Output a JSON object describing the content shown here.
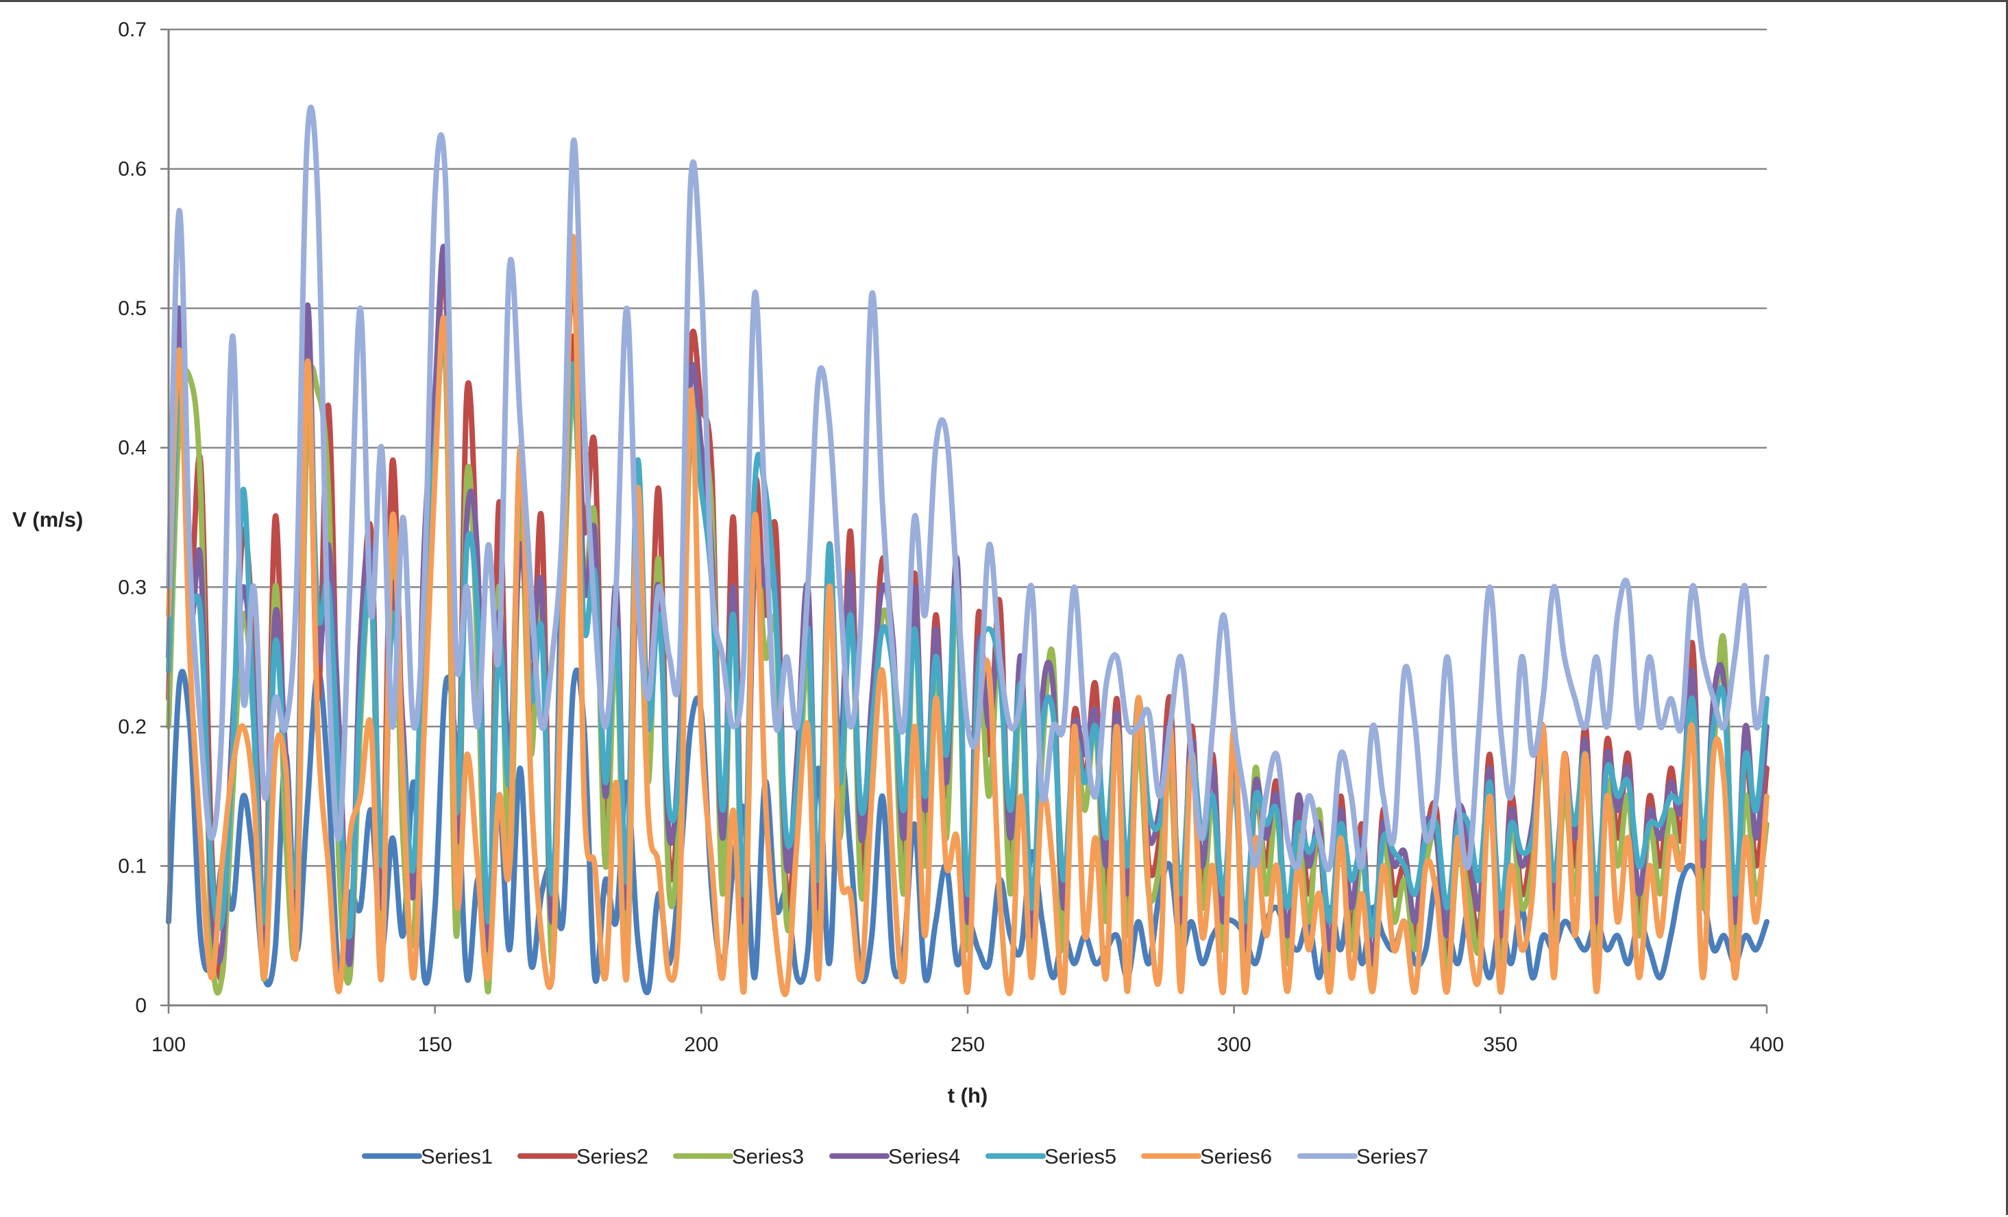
{
  "chart_data": {
    "type": "line",
    "title": "",
    "xlabel": "t (h)",
    "ylabel": "V (m/s)",
    "xlim": [
      100,
      400
    ],
    "ylim": [
      0,
      0.7
    ],
    "x_ticks": [
      100,
      150,
      200,
      250,
      300,
      350,
      400
    ],
    "y_ticks": [
      0,
      0.1,
      0.2,
      0.3,
      0.4,
      0.5,
      0.6,
      0.7
    ],
    "grid": "horizontal major gridlines",
    "legend_position": "bottom",
    "x": [
      100,
      102,
      104,
      106,
      108,
      110,
      112,
      114,
      116,
      118,
      120,
      122,
      124,
      126,
      128,
      130,
      132,
      134,
      136,
      138,
      140,
      142,
      144,
      146,
      148,
      150,
      152,
      154,
      156,
      158,
      160,
      162,
      164,
      166,
      168,
      170,
      172,
      174,
      176,
      178,
      180,
      182,
      184,
      186,
      188,
      190,
      192,
      194,
      196,
      198,
      200,
      202,
      204,
      206,
      208,
      210,
      212,
      214,
      216,
      218,
      220,
      222,
      224,
      226,
      228,
      230,
      232,
      234,
      236,
      238,
      240,
      242,
      244,
      246,
      248,
      250,
      252,
      254,
      256,
      258,
      260,
      262,
      264,
      266,
      268,
      270,
      272,
      274,
      276,
      278,
      280,
      282,
      284,
      286,
      288,
      290,
      292,
      294,
      296,
      298,
      300,
      302,
      304,
      306,
      308,
      310,
      312,
      314,
      316,
      318,
      320,
      322,
      324,
      326,
      328,
      330,
      332,
      334,
      336,
      338,
      340,
      342,
      344,
      346,
      348,
      350,
      352,
      354,
      356,
      358,
      360,
      362,
      364,
      366,
      368,
      370,
      372,
      374,
      376,
      378,
      380,
      382,
      384,
      386,
      388,
      390,
      392,
      394,
      396,
      398,
      400
    ],
    "series": [
      {
        "name": "Series1",
        "color": "#4a7ebb",
        "values": [
          0.06,
          0.23,
          0.2,
          0.05,
          0.03,
          0.1,
          0.07,
          0.15,
          0.1,
          0.02,
          0.04,
          0.18,
          0.04,
          0.14,
          0.24,
          0.16,
          0.02,
          0.08,
          0.07,
          0.14,
          0.04,
          0.12,
          0.05,
          0.16,
          0.02,
          0.07,
          0.23,
          0.18,
          0.02,
          0.09,
          0.07,
          0.15,
          0.04,
          0.17,
          0.03,
          0.08,
          0.1,
          0.06,
          0.23,
          0.2,
          0.02,
          0.09,
          0.06,
          0.16,
          0.05,
          0.01,
          0.08,
          0.03,
          0.1,
          0.2,
          0.21,
          0.08,
          0.03,
          0.1,
          0.14,
          0.02,
          0.16,
          0.07,
          0.08,
          0.02,
          0.04,
          0.17,
          0.03,
          0.18,
          0.11,
          0.02,
          0.05,
          0.15,
          0.03,
          0.04,
          0.13,
          0.02,
          0.06,
          0.1,
          0.03,
          0.06,
          0.04,
          0.03,
          0.09,
          0.05,
          0.04,
          0.11,
          0.06,
          0.02,
          0.05,
          0.03,
          0.05,
          0.03,
          0.04,
          0.05,
          0.02,
          0.06,
          0.03,
          0.08,
          0.1,
          0.04,
          0.06,
          0.03,
          0.05,
          0.06,
          0.06,
          0.05,
          0.03,
          0.06,
          0.07,
          0.05,
          0.04,
          0.06,
          0.02,
          0.07,
          0.04,
          0.08,
          0.03,
          0.07,
          0.05,
          0.04,
          0.06,
          0.03,
          0.04,
          0.09,
          0.06,
          0.03,
          0.07,
          0.05,
          0.02,
          0.06,
          0.03,
          0.07,
          0.02,
          0.05,
          0.04,
          0.06,
          0.05,
          0.04,
          0.06,
          0.04,
          0.05,
          0.03,
          0.06,
          0.04,
          0.02,
          0.05,
          0.09,
          0.1,
          0.08,
          0.04,
          0.05,
          0.03,
          0.05,
          0.04,
          0.06
        ]
      },
      {
        "name": "Series2",
        "color": "#be4b48",
        "values": [
          0.22,
          0.48,
          0.3,
          0.39,
          0.12,
          0.02,
          0.18,
          0.34,
          0.25,
          0.05,
          0.35,
          0.15,
          0.1,
          0.48,
          0.22,
          0.43,
          0.15,
          0.02,
          0.24,
          0.34,
          0.08,
          0.39,
          0.18,
          0.09,
          0.31,
          0.42,
          0.52,
          0.1,
          0.44,
          0.3,
          0.02,
          0.36,
          0.14,
          0.4,
          0.21,
          0.35,
          0.05,
          0.32,
          0.48,
          0.34,
          0.4,
          0.12,
          0.3,
          0.05,
          0.38,
          0.2,
          0.37,
          0.1,
          0.18,
          0.47,
          0.43,
          0.38,
          0.1,
          0.35,
          0.04,
          0.37,
          0.28,
          0.34,
          0.08,
          0.15,
          0.28,
          0.05,
          0.33,
          0.15,
          0.34,
          0.1,
          0.2,
          0.32,
          0.25,
          0.1,
          0.31,
          0.12,
          0.28,
          0.15,
          0.31,
          0.05,
          0.28,
          0.18,
          0.29,
          0.1,
          0.25,
          0.04,
          0.2,
          0.24,
          0.05,
          0.21,
          0.16,
          0.23,
          0.08,
          0.22,
          0.06,
          0.22,
          0.1,
          0.12,
          0.22,
          0.04,
          0.2,
          0.08,
          0.18,
          0.05,
          0.19,
          0.03,
          0.15,
          0.1,
          0.16,
          0.04,
          0.14,
          0.08,
          0.12,
          0.03,
          0.15,
          0.05,
          0.13,
          0.02,
          0.14,
          0.08,
          0.1,
          0.05,
          0.12,
          0.14,
          0.03,
          0.13,
          0.1,
          0.05,
          0.18,
          0.03,
          0.15,
          0.08,
          0.12,
          0.2,
          0.05,
          0.18,
          0.1,
          0.2,
          0.04,
          0.19,
          0.12,
          0.18,
          0.06,
          0.15,
          0.1,
          0.17,
          0.12,
          0.26,
          0.08,
          0.2,
          0.24,
          0.04,
          0.18,
          0.1,
          0.17
        ]
      },
      {
        "name": "Series3",
        "color": "#98b954",
        "values": [
          0.2,
          0.42,
          0.45,
          0.37,
          0.05,
          0.02,
          0.15,
          0.28,
          0.2,
          0.02,
          0.3,
          0.12,
          0.05,
          0.42,
          0.44,
          0.37,
          0.1,
          0.02,
          0.2,
          0.3,
          0.05,
          0.33,
          0.12,
          0.05,
          0.28,
          0.4,
          0.46,
          0.05,
          0.38,
          0.25,
          0.01,
          0.3,
          0.1,
          0.35,
          0.18,
          0.3,
          0.03,
          0.28,
          0.44,
          0.3,
          0.35,
          0.1,
          0.26,
          0.03,
          0.33,
          0.16,
          0.32,
          0.08,
          0.15,
          0.42,
          0.4,
          0.35,
          0.08,
          0.3,
          0.03,
          0.33,
          0.25,
          0.27,
          0.06,
          0.12,
          0.25,
          0.03,
          0.3,
          0.12,
          0.3,
          0.08,
          0.17,
          0.28,
          0.24,
          0.08,
          0.28,
          0.1,
          0.25,
          0.12,
          0.3,
          0.04,
          0.25,
          0.15,
          0.26,
          0.08,
          0.23,
          0.03,
          0.18,
          0.25,
          0.04,
          0.19,
          0.14,
          0.2,
          0.06,
          0.2,
          0.05,
          0.19,
          0.08,
          0.1,
          0.17,
          0.03,
          0.19,
          0.07,
          0.15,
          0.04,
          0.18,
          0.02,
          0.17,
          0.08,
          0.14,
          0.03,
          0.12,
          0.06,
          0.14,
          0.02,
          0.13,
          0.04,
          0.11,
          0.02,
          0.12,
          0.06,
          0.09,
          0.04,
          0.1,
          0.12,
          0.02,
          0.11,
          0.08,
          0.04,
          0.16,
          0.02,
          0.13,
          0.07,
          0.1,
          0.18,
          0.04,
          0.15,
          0.08,
          0.17,
          0.03,
          0.16,
          0.1,
          0.15,
          0.05,
          0.13,
          0.08,
          0.14,
          0.1,
          0.21,
          0.07,
          0.18,
          0.26,
          0.03,
          0.15,
          0.08,
          0.13
        ]
      },
      {
        "name": "Series4",
        "color": "#7d60a0",
        "values": [
          0.25,
          0.5,
          0.28,
          0.32,
          0.08,
          0.04,
          0.2,
          0.3,
          0.22,
          0.04,
          0.28,
          0.18,
          0.08,
          0.5,
          0.25,
          0.33,
          0.2,
          0.03,
          0.26,
          0.32,
          0.07,
          0.3,
          0.2,
          0.08,
          0.33,
          0.44,
          0.53,
          0.12,
          0.35,
          0.32,
          0.04,
          0.28,
          0.18,
          0.33,
          0.25,
          0.3,
          0.06,
          0.35,
          0.52,
          0.3,
          0.34,
          0.15,
          0.3,
          0.07,
          0.33,
          0.22,
          0.3,
          0.12,
          0.2,
          0.45,
          0.4,
          0.32,
          0.12,
          0.3,
          0.06,
          0.32,
          0.3,
          0.3,
          0.1,
          0.18,
          0.3,
          0.07,
          0.31,
          0.18,
          0.31,
          0.12,
          0.22,
          0.3,
          0.26,
          0.12,
          0.3,
          0.14,
          0.27,
          0.16,
          0.32,
          0.06,
          0.26,
          0.2,
          0.26,
          0.12,
          0.25,
          0.05,
          0.22,
          0.23,
          0.07,
          0.2,
          0.18,
          0.21,
          0.1,
          0.21,
          0.08,
          0.21,
          0.12,
          0.14,
          0.2,
          0.06,
          0.19,
          0.1,
          0.17,
          0.06,
          0.18,
          0.04,
          0.16,
          0.12,
          0.15,
          0.05,
          0.15,
          0.1,
          0.13,
          0.04,
          0.14,
          0.07,
          0.12,
          0.03,
          0.13,
          0.1,
          0.11,
          0.06,
          0.13,
          0.12,
          0.05,
          0.14,
          0.12,
          0.07,
          0.17,
          0.05,
          0.14,
          0.1,
          0.13,
          0.19,
          0.07,
          0.17,
          0.12,
          0.19,
          0.06,
          0.18,
          0.14,
          0.17,
          0.08,
          0.14,
          0.12,
          0.16,
          0.14,
          0.24,
          0.1,
          0.22,
          0.23,
          0.06,
          0.2,
          0.12,
          0.2
        ]
      },
      {
        "name": "Series5",
        "color": "#46aac5",
        "values": [
          0.24,
          0.45,
          0.3,
          0.28,
          0.1,
          0.06,
          0.18,
          0.37,
          0.2,
          0.06,
          0.26,
          0.16,
          0.1,
          0.45,
          0.28,
          0.3,
          0.16,
          0.05,
          0.22,
          0.3,
          0.1,
          0.28,
          0.18,
          0.1,
          0.3,
          0.4,
          0.47,
          0.14,
          0.33,
          0.28,
          0.06,
          0.26,
          0.16,
          0.38,
          0.22,
          0.27,
          0.08,
          0.3,
          0.46,
          0.27,
          0.31,
          0.16,
          0.27,
          0.09,
          0.39,
          0.2,
          0.28,
          0.14,
          0.18,
          0.42,
          0.37,
          0.3,
          0.14,
          0.28,
          0.08,
          0.37,
          0.37,
          0.28,
          0.12,
          0.16,
          0.27,
          0.09,
          0.33,
          0.16,
          0.28,
          0.14,
          0.2,
          0.27,
          0.24,
          0.14,
          0.27,
          0.15,
          0.25,
          0.18,
          0.3,
          0.08,
          0.24,
          0.27,
          0.24,
          0.14,
          0.23,
          0.07,
          0.2,
          0.21,
          0.09,
          0.19,
          0.16,
          0.2,
          0.12,
          0.2,
          0.1,
          0.22,
          0.14,
          0.13,
          0.18,
          0.08,
          0.18,
          0.12,
          0.15,
          0.08,
          0.16,
          0.06,
          0.15,
          0.13,
          0.14,
          0.07,
          0.13,
          0.11,
          0.12,
          0.06,
          0.13,
          0.09,
          0.11,
          0.05,
          0.12,
          0.11,
          0.1,
          0.08,
          0.12,
          0.13,
          0.07,
          0.13,
          0.13,
          0.09,
          0.16,
          0.07,
          0.13,
          0.11,
          0.12,
          0.18,
          0.09,
          0.16,
          0.13,
          0.18,
          0.08,
          0.17,
          0.15,
          0.16,
          0.1,
          0.13,
          0.13,
          0.15,
          0.15,
          0.22,
          0.12,
          0.2,
          0.22,
          0.08,
          0.18,
          0.14,
          0.22
        ]
      },
      {
        "name": "Series6",
        "color": "#f59d56",
        "values": [
          0.28,
          0.47,
          0.25,
          0.12,
          0.02,
          0.1,
          0.17,
          0.2,
          0.15,
          0.02,
          0.18,
          0.17,
          0.04,
          0.46,
          0.2,
          0.1,
          0.01,
          0.12,
          0.15,
          0.2,
          0.02,
          0.35,
          0.16,
          0.02,
          0.2,
          0.38,
          0.48,
          0.08,
          0.18,
          0.1,
          0.02,
          0.15,
          0.1,
          0.4,
          0.16,
          0.05,
          0.02,
          0.28,
          0.55,
          0.15,
          0.1,
          0.02,
          0.16,
          0.02,
          0.37,
          0.14,
          0.1,
          0.02,
          0.08,
          0.44,
          0.2,
          0.1,
          0.02,
          0.14,
          0.01,
          0.35,
          0.15,
          0.05,
          0.01,
          0.12,
          0.2,
          0.02,
          0.3,
          0.1,
          0.08,
          0.02,
          0.15,
          0.24,
          0.1,
          0.02,
          0.2,
          0.05,
          0.22,
          0.1,
          0.12,
          0.01,
          0.2,
          0.24,
          0.08,
          0.01,
          0.15,
          0.02,
          0.15,
          0.1,
          0.01,
          0.2,
          0.05,
          0.12,
          0.02,
          0.2,
          0.01,
          0.22,
          0.08,
          0.02,
          0.2,
          0.01,
          0.18,
          0.05,
          0.1,
          0.01,
          0.2,
          0.01,
          0.12,
          0.05,
          0.1,
          0.01,
          0.1,
          0.04,
          0.08,
          0.01,
          0.12,
          0.02,
          0.08,
          0.01,
          0.1,
          0.04,
          0.06,
          0.01,
          0.1,
          0.08,
          0.01,
          0.12,
          0.05,
          0.02,
          0.15,
          0.01,
          0.1,
          0.04,
          0.08,
          0.2,
          0.02,
          0.18,
          0.05,
          0.18,
          0.01,
          0.15,
          0.06,
          0.12,
          0.02,
          0.1,
          0.05,
          0.12,
          0.1,
          0.2,
          0.02,
          0.18,
          0.16,
          0.02,
          0.12,
          0.06,
          0.15
        ]
      },
      {
        "name": "Series7",
        "color": "#9aaedc",
        "values": [
          0.3,
          0.57,
          0.32,
          0.2,
          0.12,
          0.2,
          0.48,
          0.22,
          0.3,
          0.15,
          0.22,
          0.2,
          0.3,
          0.62,
          0.58,
          0.25,
          0.12,
          0.3,
          0.5,
          0.28,
          0.4,
          0.2,
          0.35,
          0.2,
          0.3,
          0.58,
          0.59,
          0.25,
          0.3,
          0.2,
          0.33,
          0.25,
          0.53,
          0.42,
          0.3,
          0.2,
          0.25,
          0.35,
          0.62,
          0.42,
          0.28,
          0.2,
          0.3,
          0.5,
          0.3,
          0.22,
          0.3,
          0.25,
          0.25,
          0.59,
          0.52,
          0.3,
          0.25,
          0.2,
          0.25,
          0.51,
          0.35,
          0.2,
          0.25,
          0.2,
          0.3,
          0.45,
          0.42,
          0.3,
          0.2,
          0.28,
          0.51,
          0.36,
          0.25,
          0.2,
          0.35,
          0.28,
          0.4,
          0.41,
          0.3,
          0.2,
          0.2,
          0.33,
          0.25,
          0.2,
          0.22,
          0.3,
          0.15,
          0.2,
          0.2,
          0.3,
          0.2,
          0.15,
          0.23,
          0.25,
          0.2,
          0.2,
          0.21,
          0.15,
          0.2,
          0.25,
          0.18,
          0.12,
          0.2,
          0.28,
          0.2,
          0.15,
          0.1,
          0.15,
          0.18,
          0.12,
          0.1,
          0.15,
          0.12,
          0.1,
          0.18,
          0.15,
          0.1,
          0.2,
          0.15,
          0.12,
          0.24,
          0.2,
          0.12,
          0.15,
          0.25,
          0.15,
          0.1,
          0.2,
          0.3,
          0.2,
          0.15,
          0.25,
          0.18,
          0.22,
          0.3,
          0.25,
          0.22,
          0.2,
          0.25,
          0.2,
          0.28,
          0.3,
          0.2,
          0.25,
          0.2,
          0.22,
          0.2,
          0.3,
          0.25,
          0.22,
          0.2,
          0.25,
          0.3,
          0.2,
          0.25
        ]
      }
    ]
  }
}
